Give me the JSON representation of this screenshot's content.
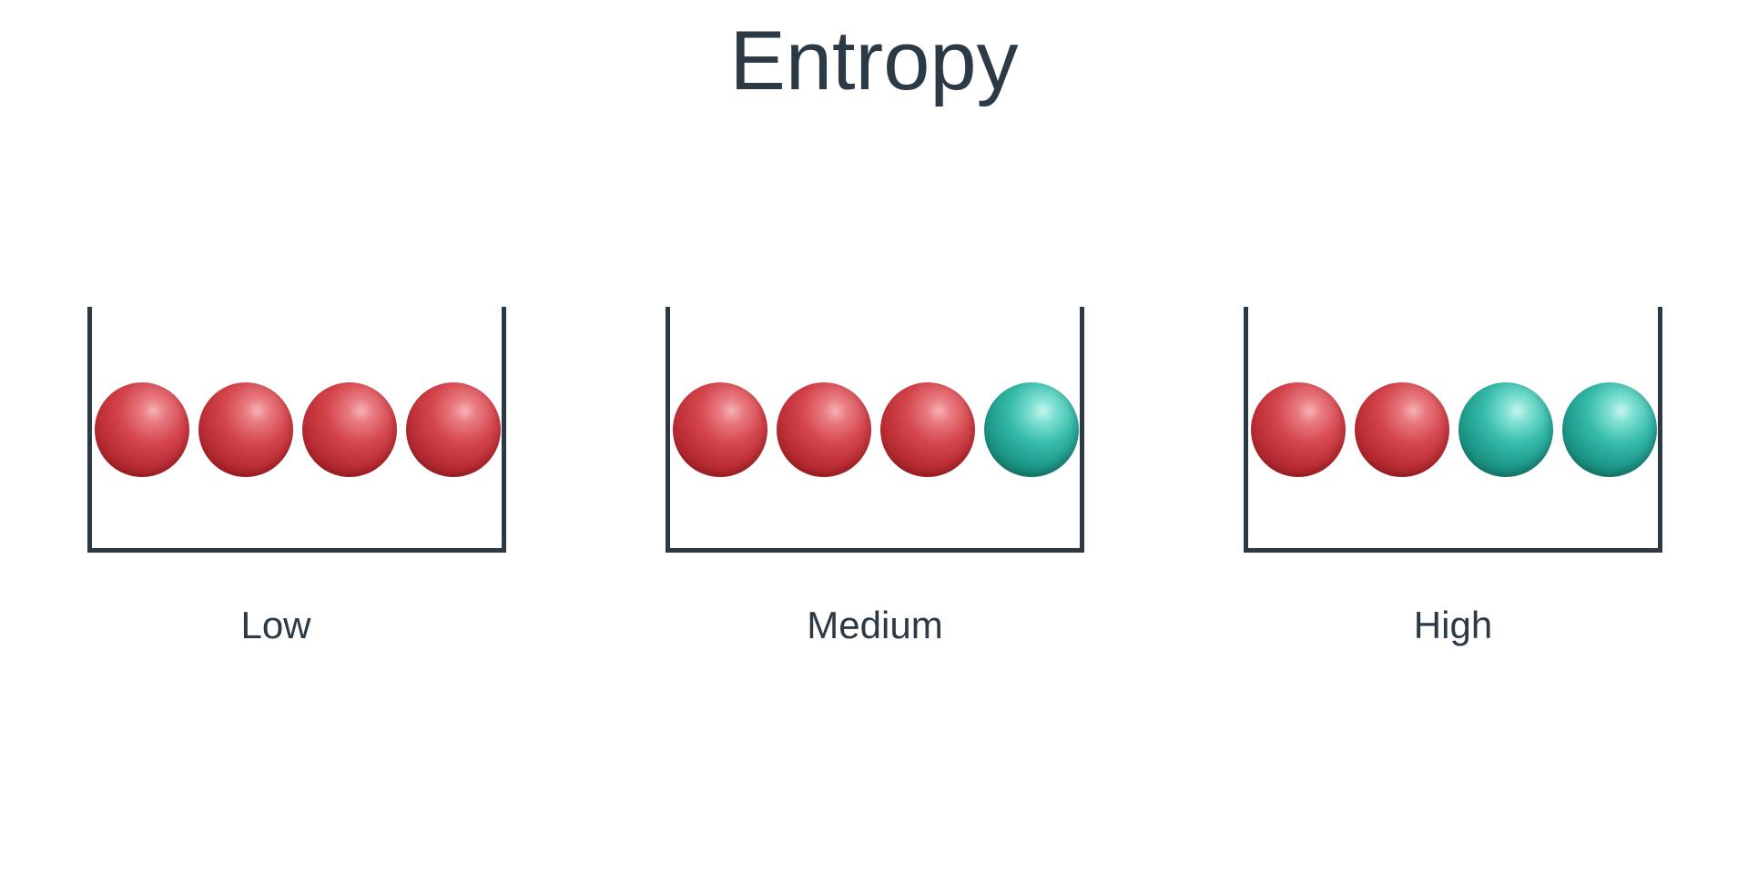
{
  "title": "Entropy",
  "colors": {
    "text": "#2c3a45",
    "red_ball": "#c8363d",
    "teal_ball": "#1f9f8f"
  },
  "panels": [
    {
      "label": "Low",
      "balls": [
        "red",
        "red",
        "red",
        "red"
      ]
    },
    {
      "label": "Medium",
      "balls": [
        "red",
        "red",
        "red",
        "teal"
      ]
    },
    {
      "label": "High",
      "balls": [
        "red",
        "red",
        "teal",
        "teal"
      ]
    }
  ]
}
